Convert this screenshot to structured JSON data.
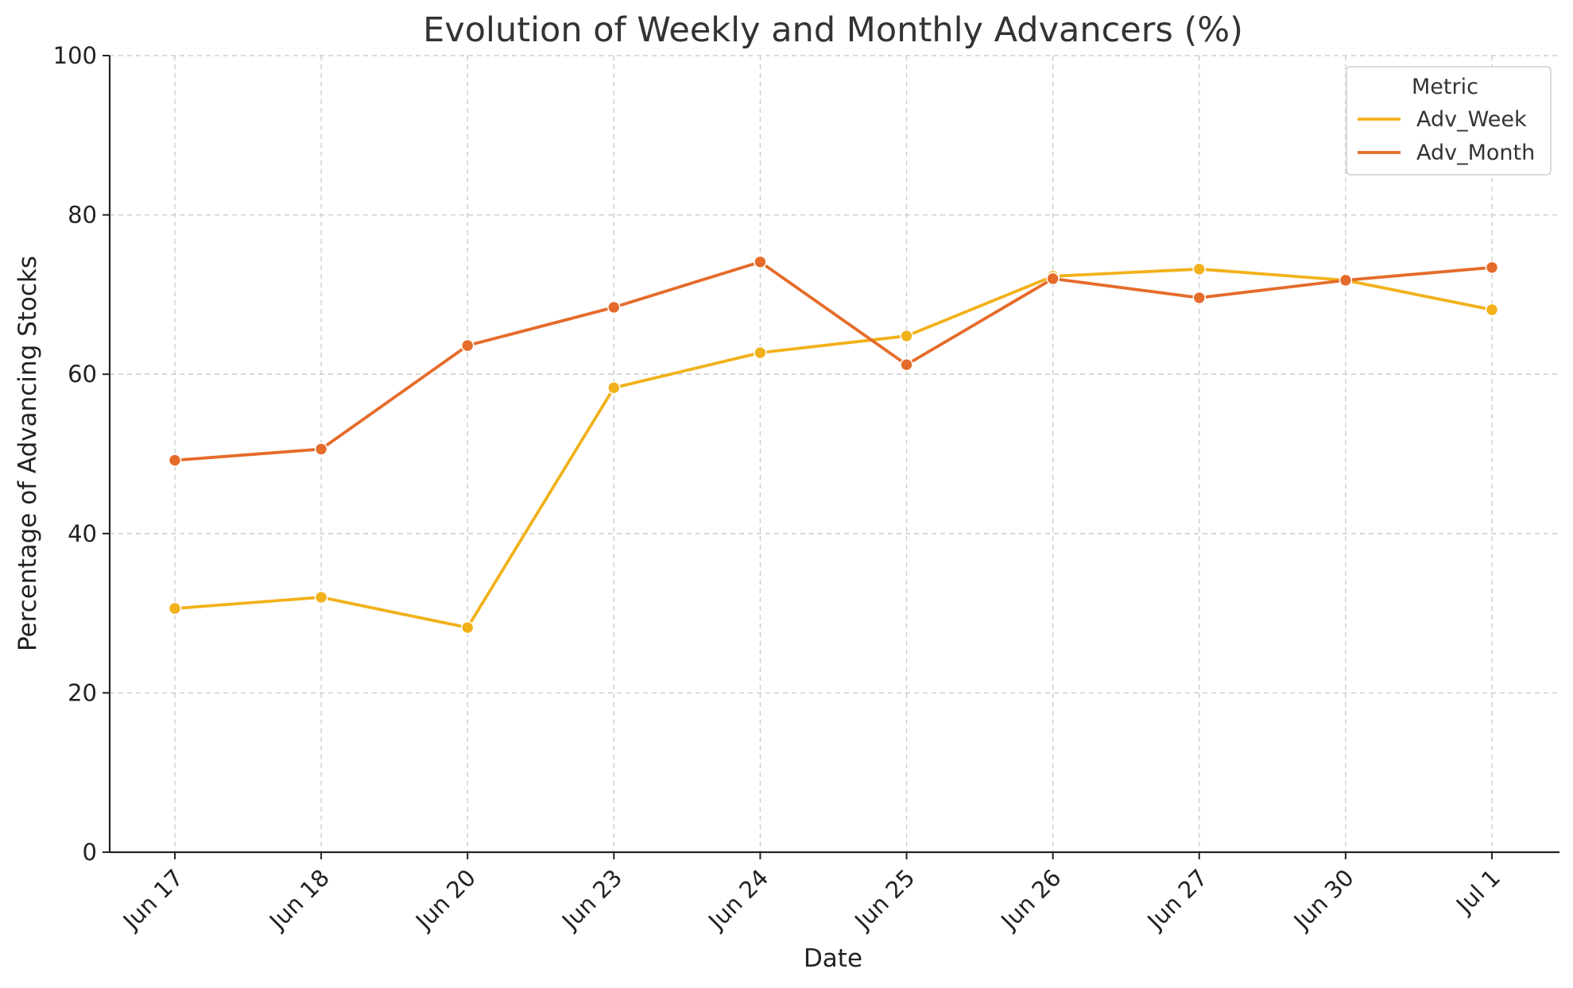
{
  "chart_data": {
    "type": "line",
    "title": "Evolution of Weekly and Monthly Advancers (%)",
    "xlabel": "Date",
    "ylabel": "Percentage of Advancing Stocks",
    "categories": [
      "Jun 17",
      "Jun 18",
      "Jun 20",
      "Jun 23",
      "Jun 24",
      "Jun 25",
      "Jun 26",
      "Jun 27",
      "Jun 30",
      "Jul 1"
    ],
    "ylim": [
      0,
      100
    ],
    "yticks": [
      0,
      20,
      40,
      60,
      80,
      100
    ],
    "grid": true,
    "legend": {
      "title": "Metric",
      "position": "top-right"
    },
    "series": [
      {
        "name": "Adv_Week",
        "color": "#f2b11a",
        "values": [
          30.6,
          32.0,
          28.2,
          58.3,
          62.7,
          64.8,
          72.3,
          73.2,
          71.8,
          68.1
        ]
      },
      {
        "name": "Adv_Month",
        "color": "#e56b2a",
        "values": [
          49.2,
          50.6,
          63.6,
          68.4,
          74.1,
          61.2,
          72.0,
          69.6,
          71.8,
          73.4
        ]
      }
    ]
  }
}
